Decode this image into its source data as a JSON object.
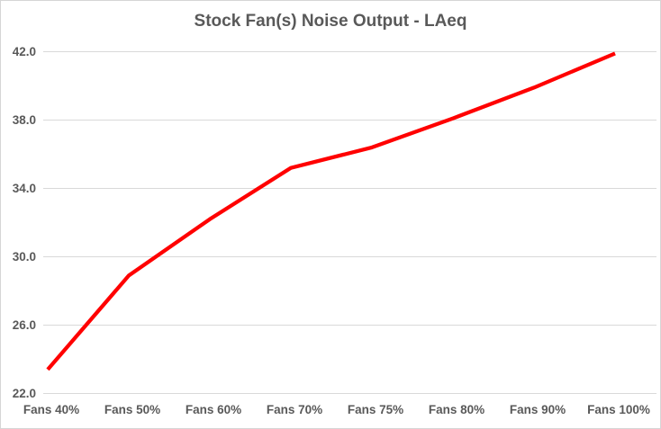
{
  "chart_data": {
    "type": "line",
    "title": "Stock Fan(s) Noise Output - LAeq",
    "categories": [
      "Fans 40%",
      "Fans 50%",
      "Fans 60%",
      "Fans 70%",
      "Fans 75%",
      "Fans 80%",
      "Fans 90%",
      "Fans 100%"
    ],
    "series": [
      {
        "name": "LAeq",
        "values": [
          23.4,
          28.9,
          32.2,
          35.2,
          36.4,
          38.1,
          39.9,
          41.9
        ]
      }
    ],
    "xlabel": "",
    "ylabel": "",
    "ylim": [
      22.0,
      42.0
    ],
    "ytick_interval": 4.0,
    "ytick_values": [
      22.0,
      26.0,
      30.0,
      34.0,
      38.0,
      42.0
    ],
    "ytick_labels": [
      "22.0",
      "26.0",
      "30.0",
      "34.0",
      "38.0",
      "42.0"
    ],
    "grid": "horizontal",
    "legend_position": "none",
    "colors": {
      "line": "#ff0000",
      "grid": "#d9d9d9",
      "text": "#595959",
      "background": "#ffffff",
      "border": "#d6d6d6"
    }
  }
}
